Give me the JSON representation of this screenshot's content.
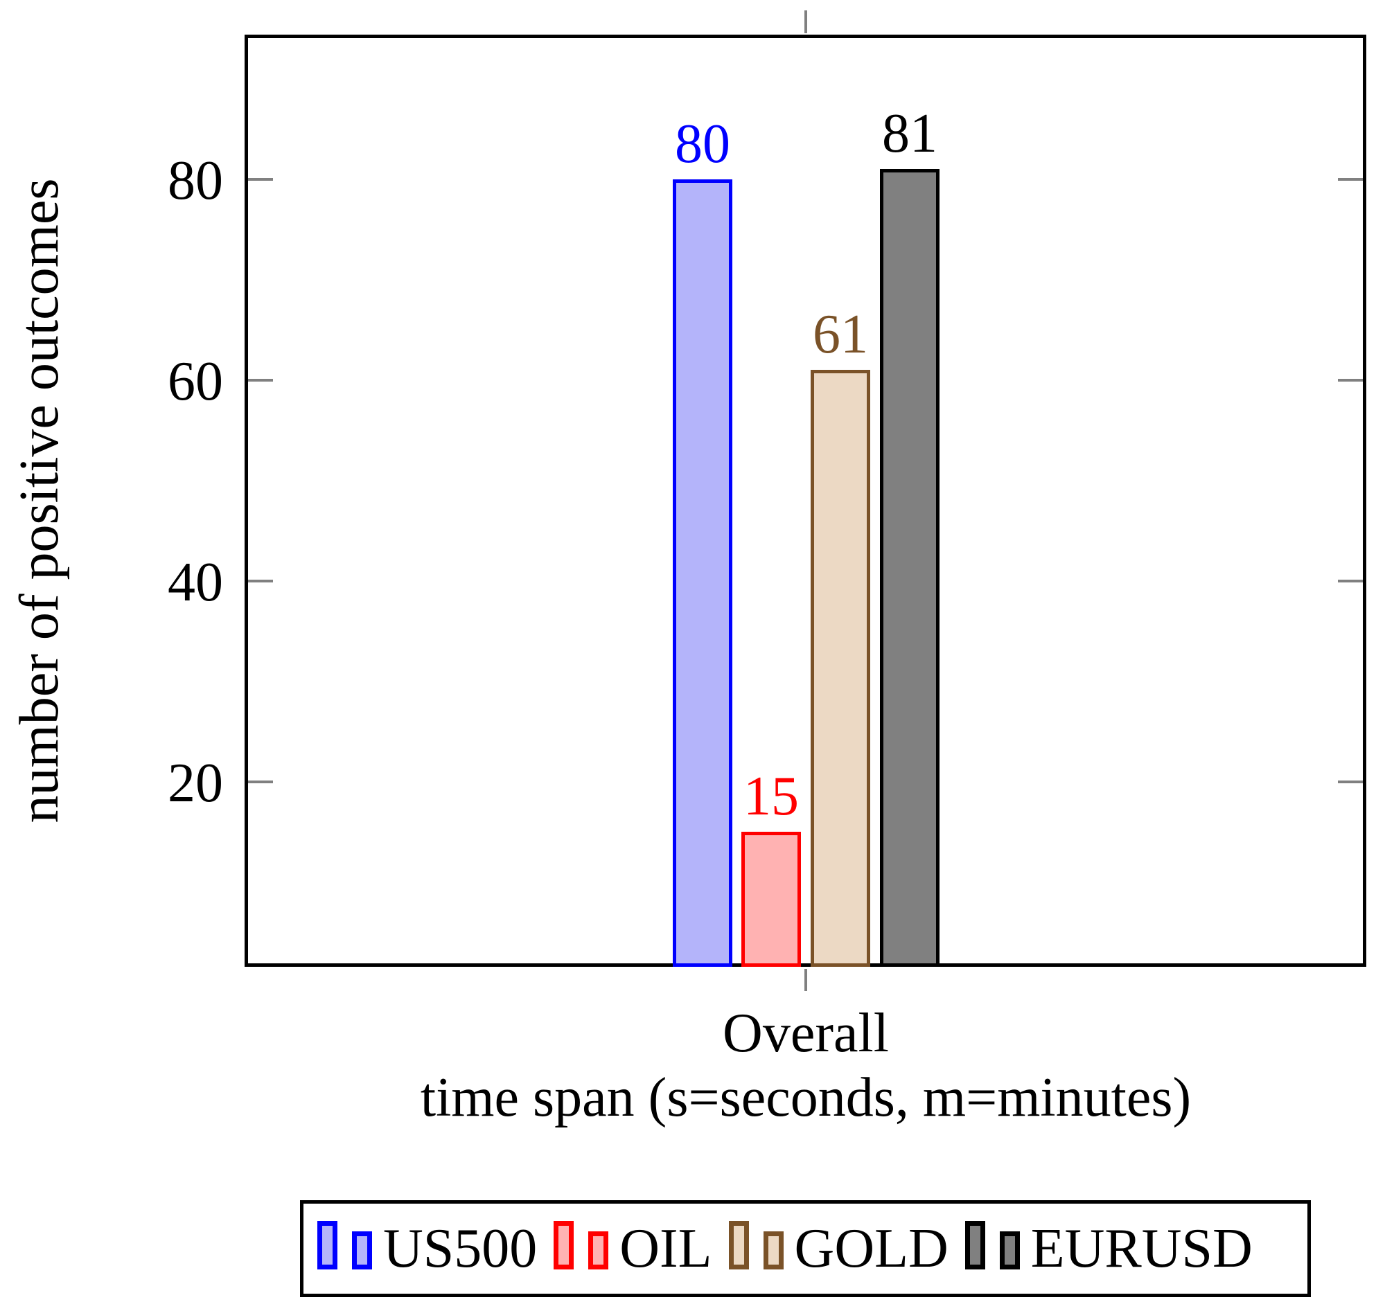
{
  "chart_data": {
    "type": "bar",
    "title": "",
    "categories": [
      "Overall"
    ],
    "series": [
      {
        "name": "US500",
        "values": [
          80
        ],
        "fill": "#b4b4fa",
        "border": "#0000ff"
      },
      {
        "name": "OIL",
        "values": [
          15
        ],
        "fill": "#ffb2b2",
        "border": "#ff0000"
      },
      {
        "name": "GOLD",
        "values": [
          61
        ],
        "fill": "#ecd9c4",
        "border": "#7a5228"
      },
      {
        "name": "EURUSD",
        "values": [
          81
        ],
        "fill": "#808080",
        "border": "#000000"
      }
    ],
    "xlabel": "time span (s=seconds, m=minutes)",
    "ylabel": "number of positive outcomes",
    "yticks": [
      "20",
      "40",
      "60",
      "80"
    ],
    "ylim": [
      0,
      94
    ],
    "grid": false,
    "legend_position": "bottom",
    "bar_value_label_colors": [
      "#0000ff",
      "#ff0000",
      "#7a5228",
      "#000000"
    ],
    "tick_color": "#808080",
    "axis_color": "#000000"
  }
}
